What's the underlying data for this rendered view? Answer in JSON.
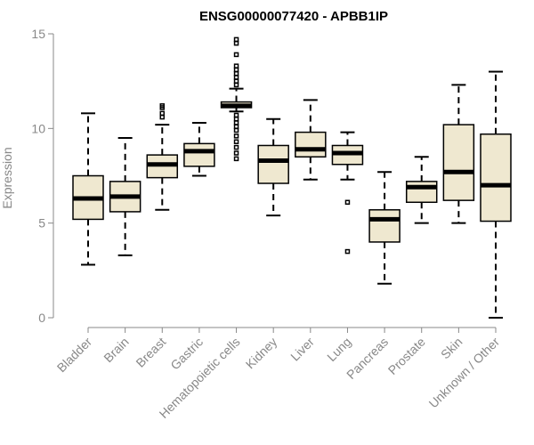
{
  "chart_data": {
    "type": "boxplot",
    "title": "ENSG00000077420 - APBB1IP",
    "xlabel": "",
    "ylabel": "Expression",
    "ylim": [
      0,
      15
    ],
    "yticks": [
      0,
      5,
      10,
      15
    ],
    "grid": false,
    "legend": "none",
    "box_fill": "#efe8d0",
    "box_stroke": "#000000",
    "median_color": "#000000",
    "axis_color": "#888888",
    "categories": [
      "Bladder",
      "Brain",
      "Breast",
      "Gastric",
      "Hematopoietic cells",
      "Kidney",
      "Liver",
      "Lung",
      "Pancreas",
      "Prostate",
      "Skin",
      "Unknown / Other"
    ],
    "boxes": [
      {
        "whisker_low": 2.8,
        "q1": 5.2,
        "median": 6.3,
        "q3": 7.5,
        "whisker_high": 10.8,
        "outliers": []
      },
      {
        "whisker_low": 3.3,
        "q1": 5.6,
        "median": 6.4,
        "q3": 7.2,
        "whisker_high": 9.5,
        "outliers": []
      },
      {
        "whisker_low": 5.7,
        "q1": 7.4,
        "median": 8.1,
        "q3": 8.6,
        "whisker_high": 10.2,
        "outliers": [
          10.6,
          10.8,
          11.1,
          11.2
        ]
      },
      {
        "whisker_low": 7.5,
        "q1": 8.0,
        "median": 8.8,
        "q3": 9.2,
        "whisker_high": 10.3,
        "outliers": []
      },
      {
        "whisker_low": 10.9,
        "q1": 11.1,
        "median": 11.2,
        "q3": 11.4,
        "whisker_high": 12.1,
        "outliers": [
          8.4,
          8.7,
          9.0,
          9.3,
          9.6,
          9.9,
          10.1,
          10.3,
          10.5,
          10.7,
          12.3,
          12.5,
          12.7,
          12.9,
          13.1,
          13.3,
          13.9,
          14.5,
          14.7
        ]
      },
      {
        "whisker_low": 5.4,
        "q1": 7.1,
        "median": 8.3,
        "q3": 9.1,
        "whisker_high": 10.5,
        "outliers": []
      },
      {
        "whisker_low": 7.3,
        "q1": 8.5,
        "median": 8.9,
        "q3": 9.8,
        "whisker_high": 11.5,
        "outliers": []
      },
      {
        "whisker_low": 7.3,
        "q1": 8.1,
        "median": 8.7,
        "q3": 9.1,
        "whisker_high": 9.8,
        "outliers": [
          6.1,
          3.5
        ]
      },
      {
        "whisker_low": 1.8,
        "q1": 4.0,
        "median": 5.2,
        "q3": 5.7,
        "whisker_high": 7.7,
        "outliers": []
      },
      {
        "whisker_low": 5.0,
        "q1": 6.1,
        "median": 6.9,
        "q3": 7.2,
        "whisker_high": 8.5,
        "outliers": []
      },
      {
        "whisker_low": 5.0,
        "q1": 6.2,
        "median": 7.7,
        "q3": 10.2,
        "whisker_high": 12.3,
        "outliers": []
      },
      {
        "whisker_low": 0.0,
        "q1": 5.1,
        "median": 7.0,
        "q3": 9.7,
        "whisker_high": 13.0,
        "outliers": []
      }
    ]
  }
}
